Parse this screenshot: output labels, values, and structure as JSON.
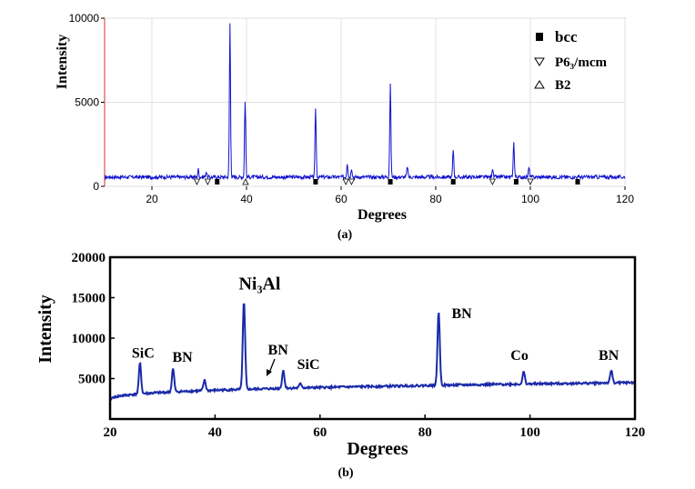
{
  "chart_data": [
    {
      "type": "line",
      "panel": "(a)",
      "xlabel": "Degrees",
      "ylabel": "Intensity",
      "xlim": [
        10,
        120
      ],
      "ylim": [
        0,
        10000
      ],
      "xticks": [
        "20",
        "40",
        "60",
        "80",
        "100",
        "120"
      ],
      "yticks": [
        "0",
        "5000",
        "10000"
      ],
      "grid": true,
      "legend_position": "top-right",
      "legend": [
        {
          "marker": "filled-square",
          "label": "bcc"
        },
        {
          "marker": "down-triangle",
          "label": "P6₃/mcm"
        },
        {
          "marker": "up-triangle",
          "label": "B2"
        }
      ],
      "baseline": 550,
      "peaks": [
        {
          "x": 29.8,
          "y": 1000
        },
        {
          "x": 31.5,
          "y": 900
        },
        {
          "x": 36.5,
          "y": 9700
        },
        {
          "x": 39.7,
          "y": 5100
        },
        {
          "x": 54.6,
          "y": 4700
        },
        {
          "x": 61.3,
          "y": 1400
        },
        {
          "x": 62.2,
          "y": 1100
        },
        {
          "x": 70.4,
          "y": 6100
        },
        {
          "x": 74.0,
          "y": 1200
        },
        {
          "x": 83.7,
          "y": 2200
        },
        {
          "x": 92.0,
          "y": 1100
        },
        {
          "x": 96.5,
          "y": 2700
        },
        {
          "x": 99.7,
          "y": 1100
        }
      ],
      "bcc_markers": [
        33.8,
        54.6,
        70.4,
        83.7,
        97.0,
        110.0
      ],
      "p63mcm_markers": [
        29.5,
        31.8,
        61.0,
        62.2,
        92.0,
        100.0
      ],
      "b2_markers": [
        39.8
      ],
      "caption": "(a)",
      "colors": {
        "line": "#1010d0",
        "frame": "#d03030"
      }
    },
    {
      "type": "line",
      "panel": "(b)",
      "xlabel": "Degrees",
      "ylabel": "Intensity",
      "xlim": [
        20,
        120
      ],
      "ylim": [
        0,
        20000
      ],
      "xticks": [
        "20",
        "40",
        "60",
        "80",
        "100",
        "120"
      ],
      "yticks": [
        "5000",
        "10000",
        "15000",
        "20000"
      ],
      "grid": false,
      "baseline_start": 2300,
      "baseline_end": 4500,
      "peaks": [
        {
          "x": 25.7,
          "y": 6900
        },
        {
          "x": 32.0,
          "y": 6200
        },
        {
          "x": 38.0,
          "y": 4800
        },
        {
          "x": 45.5,
          "y": 14500
        },
        {
          "x": 53.0,
          "y": 6000
        },
        {
          "x": 56.3,
          "y": 4400
        },
        {
          "x": 82.6,
          "y": 13300
        },
        {
          "x": 98.8,
          "y": 5800
        },
        {
          "x": 115.5,
          "y": 6000
        }
      ],
      "annotations": [
        {
          "text": "SiC",
          "x": 26.3,
          "y": 7600
        },
        {
          "text": "BN",
          "x": 33.8,
          "y": 7100
        },
        {
          "text": "Ni₃Al",
          "x": 48.5,
          "y": 16000
        },
        {
          "text": "BN",
          "x": 52.0,
          "y": 8000
        },
        {
          "text": "SiC",
          "x": 57.8,
          "y": 6200
        },
        {
          "text": "BN",
          "x": 87.0,
          "y": 12500
        },
        {
          "text": "Co",
          "x": 98.0,
          "y": 7300
        },
        {
          "text": "BN",
          "x": 115.0,
          "y": 7300
        }
      ],
      "caption": "(b)",
      "colors": {
        "line": "#1a2aa8"
      }
    }
  ]
}
